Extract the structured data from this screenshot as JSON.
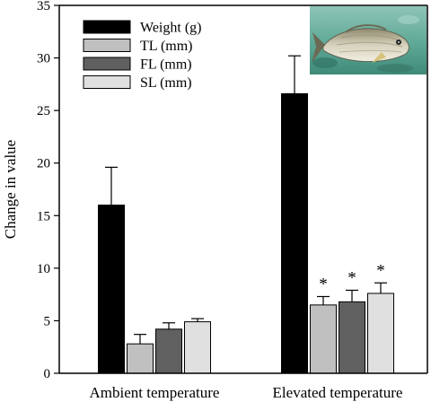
{
  "chart_data": {
    "type": "bar",
    "title": "",
    "xlabel": "",
    "ylabel": "Change in value",
    "ylim": [
      0,
      35
    ],
    "yticks": [
      0,
      5,
      10,
      15,
      20,
      25,
      30,
      35
    ],
    "grid": false,
    "legend_position": "top-left",
    "categories": [
      "Ambient temperature",
      "Elevated temperature"
    ],
    "series": [
      {
        "name": "Weight (g)",
        "color": "#000000",
        "values": [
          16.0,
          26.6
        ],
        "errors": [
          3.6,
          3.6
        ],
        "significance": [
          "",
          ""
        ]
      },
      {
        "name": "TL (mm)",
        "color": "#c0c0c0",
        "values": [
          2.8,
          6.5
        ],
        "errors": [
          0.9,
          0.8
        ],
        "significance": [
          "",
          "*"
        ]
      },
      {
        "name": "FL (mm)",
        "color": "#606060",
        "values": [
          4.2,
          6.8
        ],
        "errors": [
          0.6,
          1.1
        ],
        "significance": [
          "",
          "*"
        ]
      },
      {
        "name": "SL (mm)",
        "color": "#e0e0e0",
        "values": [
          4.9,
          7.6
        ],
        "errors": [
          0.3,
          1.0
        ],
        "significance": [
          "",
          "*"
        ]
      }
    ],
    "inset_image": "fish-photo"
  }
}
